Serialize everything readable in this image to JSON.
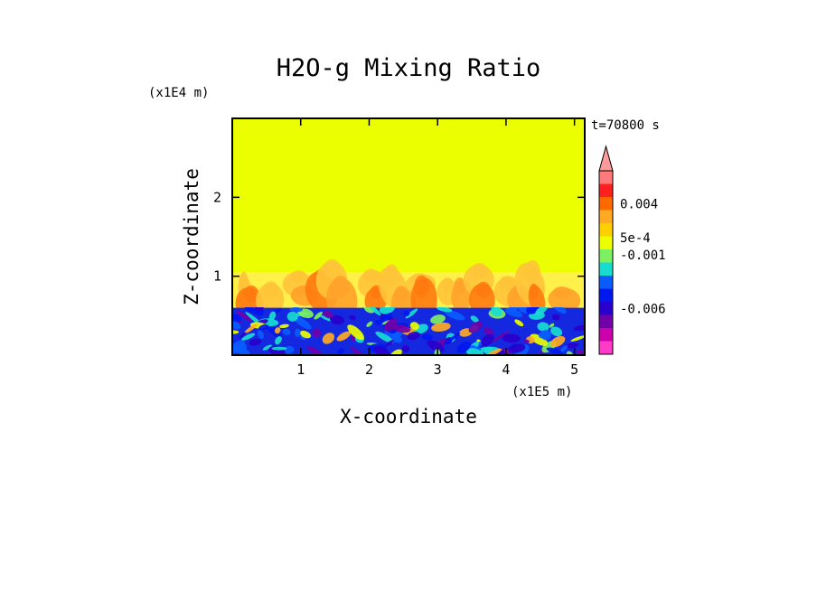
{
  "chart_data": {
    "type": "heatmap",
    "title": "H2O-g Mixing Ratio",
    "xlabel": "X-coordinate",
    "ylabel": "Z-coordinate",
    "x_multiplier_label": "(x1E5 m)",
    "y_multiplier_label": "(x1E4 m)",
    "time_label": "t=70800 s",
    "xlim": [
      0,
      5.15
    ],
    "ylim": [
      0,
      3.0
    ],
    "x_ticks": [
      {
        "value": 1,
        "label": "1"
      },
      {
        "value": 2,
        "label": "2"
      },
      {
        "value": 3,
        "label": "3"
      },
      {
        "value": 4,
        "label": "4"
      },
      {
        "value": 5,
        "label": "5"
      }
    ],
    "y_ticks": [
      {
        "value": 1,
        "label": "1"
      },
      {
        "value": 2,
        "label": "2"
      }
    ],
    "background_color": "#ecff00",
    "boundary_layer_top": 0.6,
    "anomaly_band_top": 1.05,
    "colorbar": {
      "bins": [
        "#ff3cc8",
        "#cc00aa",
        "#7000a8",
        "#2a00cc",
        "#0018f0",
        "#0a5cff",
        "#18dcd0",
        "#7cf060",
        "#ecff00",
        "#ffd000",
        "#ffaa22",
        "#ff6a00",
        "#ff2020",
        "#ff7a7a"
      ],
      "extend_max_color": "#ff9a9a",
      "labels": [
        {
          "text": "0.004",
          "bin": 11.5
        },
        {
          "text": "5e-4",
          "bin": 8.9
        },
        {
          "text": "-0.001",
          "bin": 7.6
        },
        {
          "text": "-0.006",
          "bin": 3.5
        }
      ]
    },
    "blobs": [
      {
        "x": 0.2,
        "z": 0.75,
        "level": "light"
      },
      {
        "x": 0.25,
        "z": 0.65,
        "level": "strong"
      },
      {
        "x": 0.55,
        "z": 0.7,
        "level": "light"
      },
      {
        "x": 0.95,
        "z": 0.9,
        "level": "light"
      },
      {
        "x": 1.05,
        "z": 0.75,
        "level": "medium"
      },
      {
        "x": 1.3,
        "z": 0.8,
        "level": "strong"
      },
      {
        "x": 1.45,
        "z": 0.95,
        "level": "light"
      },
      {
        "x": 1.6,
        "z": 0.7,
        "level": "medium"
      },
      {
        "x": 2.05,
        "z": 0.9,
        "level": "light"
      },
      {
        "x": 2.1,
        "z": 0.7,
        "level": "strong"
      },
      {
        "x": 2.35,
        "z": 0.85,
        "level": "light"
      },
      {
        "x": 2.5,
        "z": 0.65,
        "level": "medium"
      },
      {
        "x": 2.75,
        "z": 0.9,
        "level": "light"
      },
      {
        "x": 2.8,
        "z": 0.7,
        "level": "strong"
      },
      {
        "x": 3.15,
        "z": 0.8,
        "level": "light"
      },
      {
        "x": 3.35,
        "z": 0.75,
        "level": "medium"
      },
      {
        "x": 3.6,
        "z": 0.95,
        "level": "light"
      },
      {
        "x": 3.65,
        "z": 0.7,
        "level": "strong"
      },
      {
        "x": 4.05,
        "z": 0.8,
        "level": "light"
      },
      {
        "x": 4.2,
        "z": 0.7,
        "level": "medium"
      },
      {
        "x": 4.35,
        "z": 0.9,
        "level": "light"
      },
      {
        "x": 4.45,
        "z": 0.7,
        "level": "strong"
      },
      {
        "x": 4.85,
        "z": 0.7,
        "level": "medium"
      }
    ]
  }
}
